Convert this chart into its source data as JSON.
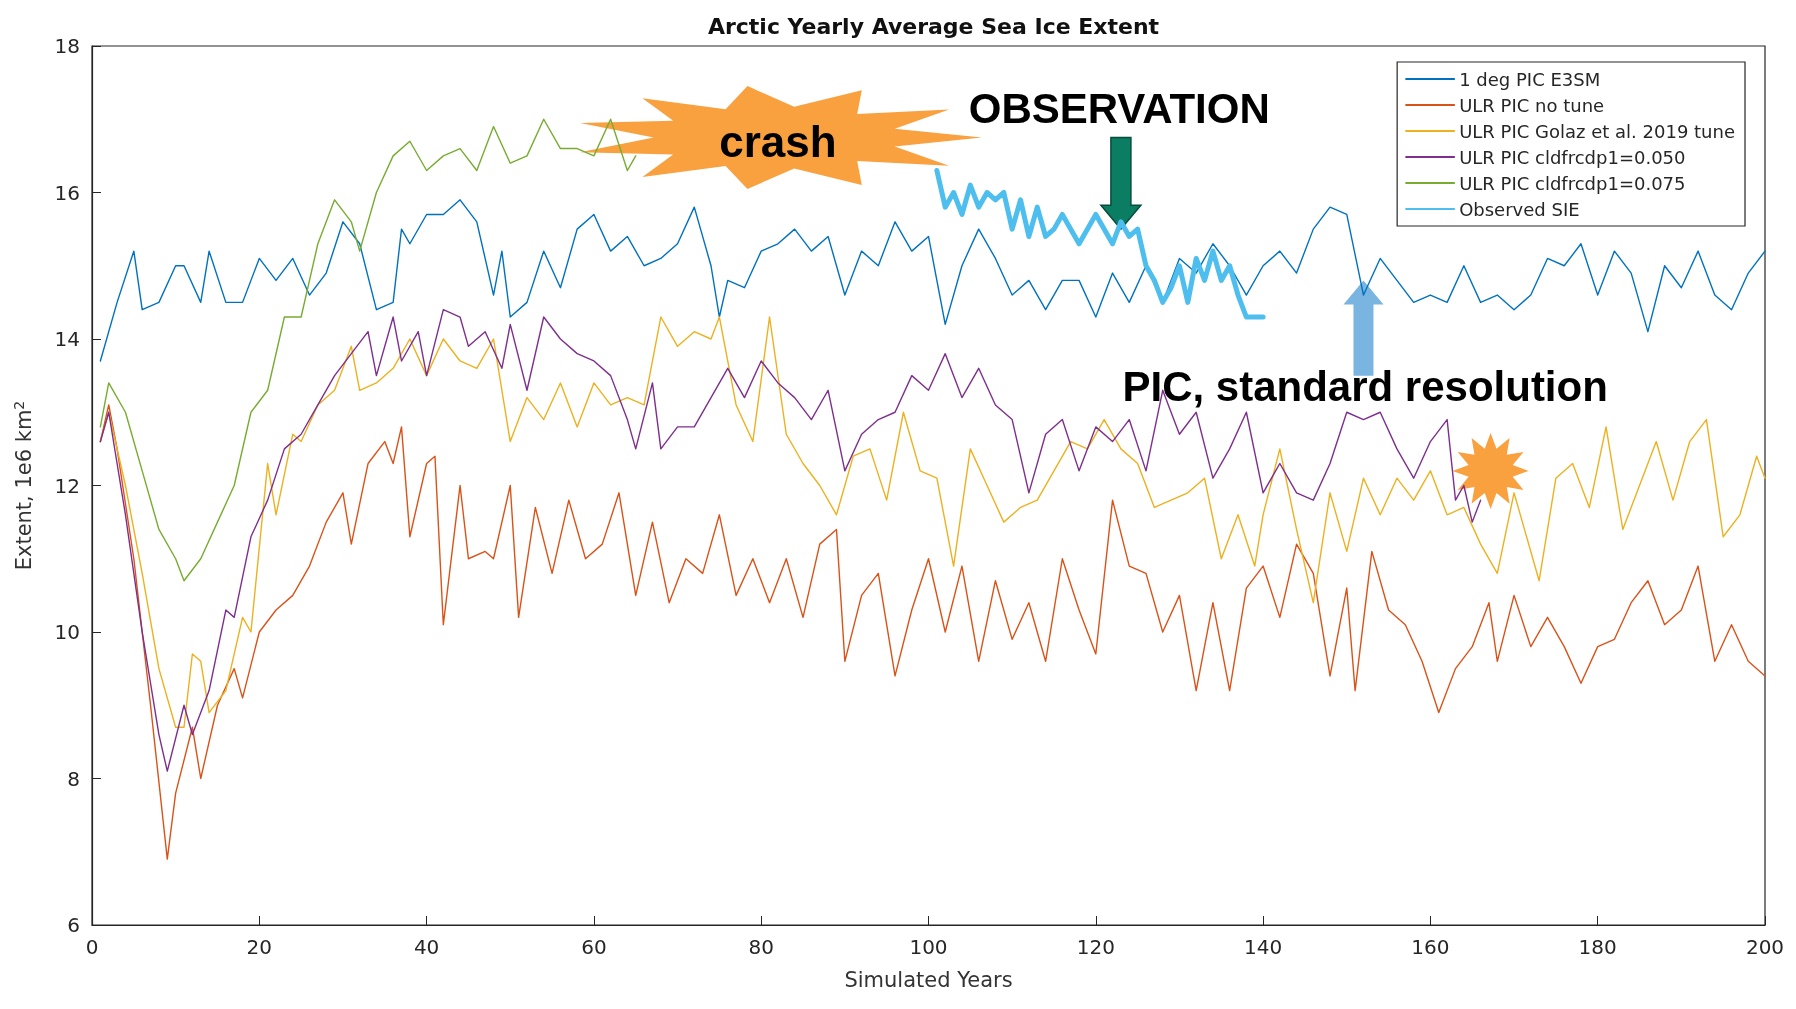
{
  "chart_data": {
    "type": "line",
    "title": "Arctic Yearly Average Sea Ice Extent",
    "xlabel": "Simulated Years",
    "ylabel": "Extent, 1e6 km$^{2}$",
    "xlim": [
      0,
      200
    ],
    "xticks": [
      0,
      20,
      40,
      60,
      80,
      100,
      120,
      140,
      160,
      180,
      200
    ],
    "ylim": [
      6,
      18
    ],
    "yticks": [
      6,
      8,
      10,
      12,
      14,
      16,
      18
    ],
    "grid": false,
    "legend": "top right",
    "marker": "none",
    "line_style": "solid",
    "annotations": [
      "crash",
      {
        "text": "OBSERVATION",
        "x": 123,
        "y": 15.5
      },
      {
        "text": "PIC, standard resolution",
        "x": 152,
        "y": 14.8
      }
    ],
    "series": [
      {
        "name": "1 deg PIC E3SM",
        "color": "#0072bd",
        "x": [
          1,
          3,
          5,
          6,
          8,
          10,
          11,
          13,
          14,
          16,
          18,
          20,
          22,
          24,
          26,
          28,
          30,
          32,
          34,
          36,
          37,
          38,
          40,
          42,
          44,
          46,
          48,
          49,
          50,
          52,
          54,
          56,
          58,
          60,
          62,
          64,
          66,
          68,
          70,
          72,
          74,
          75,
          76,
          78,
          80,
          82,
          84,
          86,
          88,
          90,
          92,
          94,
          96,
          98,
          100,
          102,
          104,
          106,
          108,
          110,
          112,
          114,
          116,
          118,
          120,
          122,
          124,
          126,
          128,
          130,
          132,
          134,
          136,
          138,
          140,
          142,
          144,
          146,
          148,
          150,
          152,
          154,
          156,
          158,
          160,
          162,
          164,
          166,
          168,
          170,
          172,
          174,
          176,
          178,
          180,
          182,
          184,
          186,
          188,
          190,
          192,
          194,
          196,
          198,
          200
        ],
        "values": [
          13.7,
          14.5,
          15.2,
          14.4,
          14.5,
          15.0,
          15.0,
          14.5,
          15.2,
          14.5,
          14.5,
          15.1,
          14.8,
          15.1,
          14.6,
          14.9,
          15.6,
          15.3,
          14.4,
          14.5,
          15.5,
          15.3,
          15.7,
          15.7,
          15.9,
          15.6,
          14.6,
          15.2,
          14.3,
          14.5,
          15.2,
          14.7,
          15.5,
          15.7,
          15.2,
          15.4,
          15.0,
          15.1,
          15.3,
          15.8,
          15.0,
          14.3,
          14.8,
          14.7,
          15.2,
          15.3,
          15.5,
          15.2,
          15.4,
          14.6,
          15.2,
          15.0,
          15.6,
          15.2,
          15.4,
          14.2,
          15.0,
          15.5,
          15.1,
          14.6,
          14.8,
          14.4,
          14.8,
          14.8,
          14.3,
          14.9,
          14.5,
          15.0,
          14.5,
          15.1,
          14.9,
          15.3,
          15.0,
          14.6,
          15.0,
          15.2,
          14.9,
          15.5,
          15.8,
          15.7,
          14.6,
          15.1,
          14.8,
          14.5,
          14.6,
          14.5,
          15.0,
          14.5,
          14.6,
          14.4,
          14.6,
          15.1,
          15.0,
          15.3,
          14.6,
          15.2,
          14.9,
          14.1,
          15.0,
          14.7,
          15.2,
          14.6,
          14.4,
          14.9,
          15.2
        ]
      },
      {
        "name": "ULR PIC no tune",
        "color": "#d95319",
        "x": [
          1,
          2,
          3,
          5,
          7,
          9,
          10,
          12,
          13,
          15,
          17,
          18,
          20,
          22,
          24,
          26,
          28,
          30,
          31,
          33,
          35,
          36,
          37,
          38,
          40,
          41,
          42,
          44,
          45,
          47,
          48,
          50,
          51,
          53,
          55,
          57,
          59,
          61,
          63,
          65,
          67,
          69,
          71,
          73,
          75,
          77,
          79,
          81,
          83,
          85,
          87,
          89,
          90,
          92,
          94,
          96,
          98,
          100,
          102,
          104,
          106,
          108,
          110,
          112,
          114,
          116,
          118,
          120,
          122,
          124,
          126,
          128,
          130,
          132,
          134,
          136,
          138,
          140,
          142,
          144,
          146,
          148,
          150,
          151,
          153,
          155,
          157,
          159,
          161,
          163,
          165,
          167,
          168,
          170,
          172,
          174,
          176,
          178,
          180,
          182,
          184,
          186,
          188,
          190,
          192,
          194,
          196,
          198,
          200
        ],
        "values": [
          12.6,
          13.1,
          12.5,
          11.0,
          9.0,
          6.9,
          7.8,
          8.7,
          8.0,
          9.0,
          9.5,
          9.1,
          10.0,
          10.3,
          10.5,
          10.9,
          11.5,
          11.9,
          11.2,
          12.3,
          12.6,
          12.3,
          12.8,
          11.3,
          12.3,
          12.4,
          10.1,
          12.0,
          11.0,
          11.1,
          11.0,
          12.0,
          10.2,
          11.7,
          10.8,
          11.8,
          11.0,
          11.2,
          11.9,
          10.5,
          11.5,
          10.4,
          11.0,
          10.8,
          11.6,
          10.5,
          11.0,
          10.4,
          11.0,
          10.2,
          11.2,
          11.4,
          9.6,
          10.5,
          10.8,
          9.4,
          10.3,
          11.0,
          10.0,
          10.9,
          9.6,
          10.7,
          9.9,
          10.4,
          9.6,
          11.0,
          10.3,
          9.7,
          11.8,
          10.9,
          10.8,
          10.0,
          10.5,
          9.2,
          10.4,
          9.2,
          10.6,
          10.9,
          10.2,
          11.2,
          10.8,
          9.4,
          10.6,
          9.2,
          11.1,
          10.3,
          10.1,
          9.6,
          8.9,
          9.5,
          9.8,
          10.4,
          9.6,
          10.5,
          9.8,
          10.2,
          9.8,
          9.3,
          9.8,
          9.9,
          10.4,
          10.7,
          10.1,
          10.3,
          10.9,
          9.6,
          10.1,
          9.6,
          9.4
        ]
      },
      {
        "name": "ULR PIC Golaz et al. 2019 tune",
        "color": "#edb120",
        "x": [
          1,
          2,
          4,
          6,
          8,
          10,
          11,
          12,
          13,
          14,
          16,
          18,
          19,
          21,
          22,
          24,
          25,
          27,
          29,
          31,
          32,
          34,
          36,
          38,
          40,
          42,
          44,
          46,
          48,
          50,
          52,
          54,
          56,
          58,
          60,
          62,
          64,
          66,
          68,
          70,
          72,
          74,
          75,
          77,
          79,
          81,
          83,
          85,
          87,
          89,
          91,
          93,
          95,
          97,
          99,
          101,
          103,
          105,
          107,
          109,
          111,
          113,
          115,
          117,
          119,
          121,
          123,
          125,
          127,
          129,
          131,
          133,
          135,
          137,
          139,
          140,
          142,
          144,
          146,
          148,
          150,
          152,
          154,
          156,
          158,
          160,
          162,
          164,
          166,
          168,
          170,
          171,
          173,
          175,
          177,
          179,
          181,
          183,
          185,
          187,
          189,
          191,
          193,
          195,
          197,
          199,
          200
        ],
        "values": [
          12.6,
          13.0,
          12.0,
          10.8,
          9.5,
          8.7,
          8.7,
          9.7,
          9.6,
          8.9,
          9.2,
          10.2,
          10.0,
          12.3,
          11.6,
          12.7,
          12.6,
          13.1,
          13.3,
          13.9,
          13.3,
          13.4,
          13.6,
          14.0,
          13.5,
          14.0,
          13.7,
          13.6,
          14.0,
          12.6,
          13.2,
          12.9,
          13.4,
          12.8,
          13.4,
          13.1,
          13.2,
          13.1,
          14.3,
          13.9,
          14.1,
          14.0,
          14.3,
          13.1,
          12.6,
          14.3,
          12.7,
          12.3,
          12.0,
          11.6,
          12.4,
          12.5,
          11.8,
          13.0,
          12.2,
          12.1,
          10.9,
          12.5,
          12.0,
          11.5,
          11.7,
          11.8,
          12.2,
          12.6,
          12.5,
          12.9,
          12.5,
          12.3,
          11.7,
          11.8,
          11.9,
          12.1,
          11.0,
          11.6,
          10.9,
          11.6,
          12.5,
          11.4,
          10.4,
          11.9,
          11.1,
          12.1,
          11.6,
          12.1,
          11.8,
          12.2,
          11.6,
          11.7,
          11.2,
          10.8,
          11.9,
          11.5,
          10.7,
          12.1,
          12.3,
          11.7,
          12.8,
          11.4,
          12.0,
          12.6,
          11.8,
          12.6,
          12.9,
          11.3,
          11.6,
          12.4,
          12.1
        ]
      },
      {
        "name": "ULR PIC cldfrcdp1=0.050",
        "color": "#7e2f8e",
        "x": [
          1,
          2,
          4,
          6,
          8,
          9,
          11,
          12,
          14,
          16,
          17,
          19,
          21,
          23,
          25,
          27,
          29,
          31,
          33,
          34,
          36,
          37,
          39,
          40,
          42,
          44,
          45,
          47,
          49,
          50,
          52,
          54,
          56,
          58,
          60,
          62,
          64,
          65,
          67,
          68,
          70,
          72,
          74,
          76,
          78,
          80,
          82,
          84,
          86,
          88,
          90,
          92,
          94,
          96,
          98,
          100,
          102,
          104,
          106,
          108,
          110,
          112,
          114,
          116,
          118,
          120,
          122,
          124,
          126,
          128,
          130,
          132,
          134,
          136,
          138,
          140,
          142,
          144,
          146,
          148,
          150,
          152,
          154,
          156,
          158,
          160,
          162,
          163,
          164,
          165,
          166
        ],
        "values": [
          12.6,
          13.0,
          11.6,
          10.0,
          8.6,
          8.1,
          9.0,
          8.6,
          9.2,
          10.3,
          10.2,
          11.3,
          11.8,
          12.5,
          12.7,
          13.1,
          13.5,
          13.8,
          14.1,
          13.5,
          14.3,
          13.7,
          14.1,
          13.5,
          14.4,
          14.3,
          13.9,
          14.1,
          13.6,
          14.2,
          13.3,
          14.3,
          14.0,
          13.8,
          13.7,
          13.5,
          12.9,
          12.5,
          13.4,
          12.5,
          12.8,
          12.8,
          13.2,
          13.6,
          13.2,
          13.7,
          13.4,
          13.2,
          12.9,
          13.3,
          12.2,
          12.7,
          12.9,
          13.0,
          13.5,
          13.3,
          13.8,
          13.2,
          13.6,
          13.1,
          12.9,
          11.9,
          12.7,
          12.9,
          12.2,
          12.8,
          12.6,
          12.9,
          12.2,
          13.3,
          12.7,
          13.0,
          12.1,
          12.5,
          13.0,
          11.9,
          12.3,
          11.9,
          11.8,
          12.3,
          13.0,
          12.9,
          13.0,
          12.5,
          12.1,
          12.6,
          12.9,
          11.8,
          12.0,
          11.5,
          11.8
        ]
      },
      {
        "name": "ULR PIC cldfrcdp1=0.075",
        "color": "#77ac30",
        "x": [
          1,
          2,
          4,
          6,
          8,
          10,
          11,
          13,
          15,
          17,
          19,
          21,
          23,
          25,
          27,
          29,
          31,
          32,
          34,
          36,
          38,
          40,
          42,
          44,
          46,
          48,
          50,
          52,
          54,
          56,
          58,
          60,
          62,
          64,
          65
        ],
        "values": [
          12.8,
          13.4,
          13.0,
          12.2,
          11.4,
          11.0,
          10.7,
          11.0,
          11.5,
          12.0,
          13.0,
          13.3,
          14.3,
          14.3,
          15.3,
          15.9,
          15.6,
          15.2,
          16.0,
          16.5,
          16.7,
          16.3,
          16.5,
          16.6,
          16.3,
          16.9,
          16.4,
          16.5,
          17.0,
          16.6,
          16.6,
          16.5,
          17.0,
          16.3,
          16.5
        ]
      },
      {
        "name": "Observed SIE",
        "color": "#4dbeee",
        "x": [
          101,
          102,
          103,
          104,
          105,
          106,
          107,
          108,
          109,
          110,
          111,
          112,
          113,
          114,
          115,
          116,
          118,
          120,
          122,
          123,
          124,
          125,
          126,
          127,
          128,
          129,
          130,
          131,
          132,
          133,
          134,
          135,
          136,
          137,
          138,
          139,
          140
        ],
        "values": [
          16.3,
          15.8,
          16.0,
          15.7,
          16.1,
          15.8,
          16.0,
          15.9,
          16.0,
          15.5,
          15.9,
          15.4,
          15.8,
          15.4,
          15.5,
          15.7,
          15.3,
          15.7,
          15.3,
          15.6,
          15.4,
          15.5,
          15.0,
          14.8,
          14.5,
          14.7,
          15.0,
          14.5,
          15.1,
          14.8,
          15.2,
          14.8,
          15.0,
          14.6,
          14.3,
          14.3,
          14.3
        ]
      }
    ]
  }
}
